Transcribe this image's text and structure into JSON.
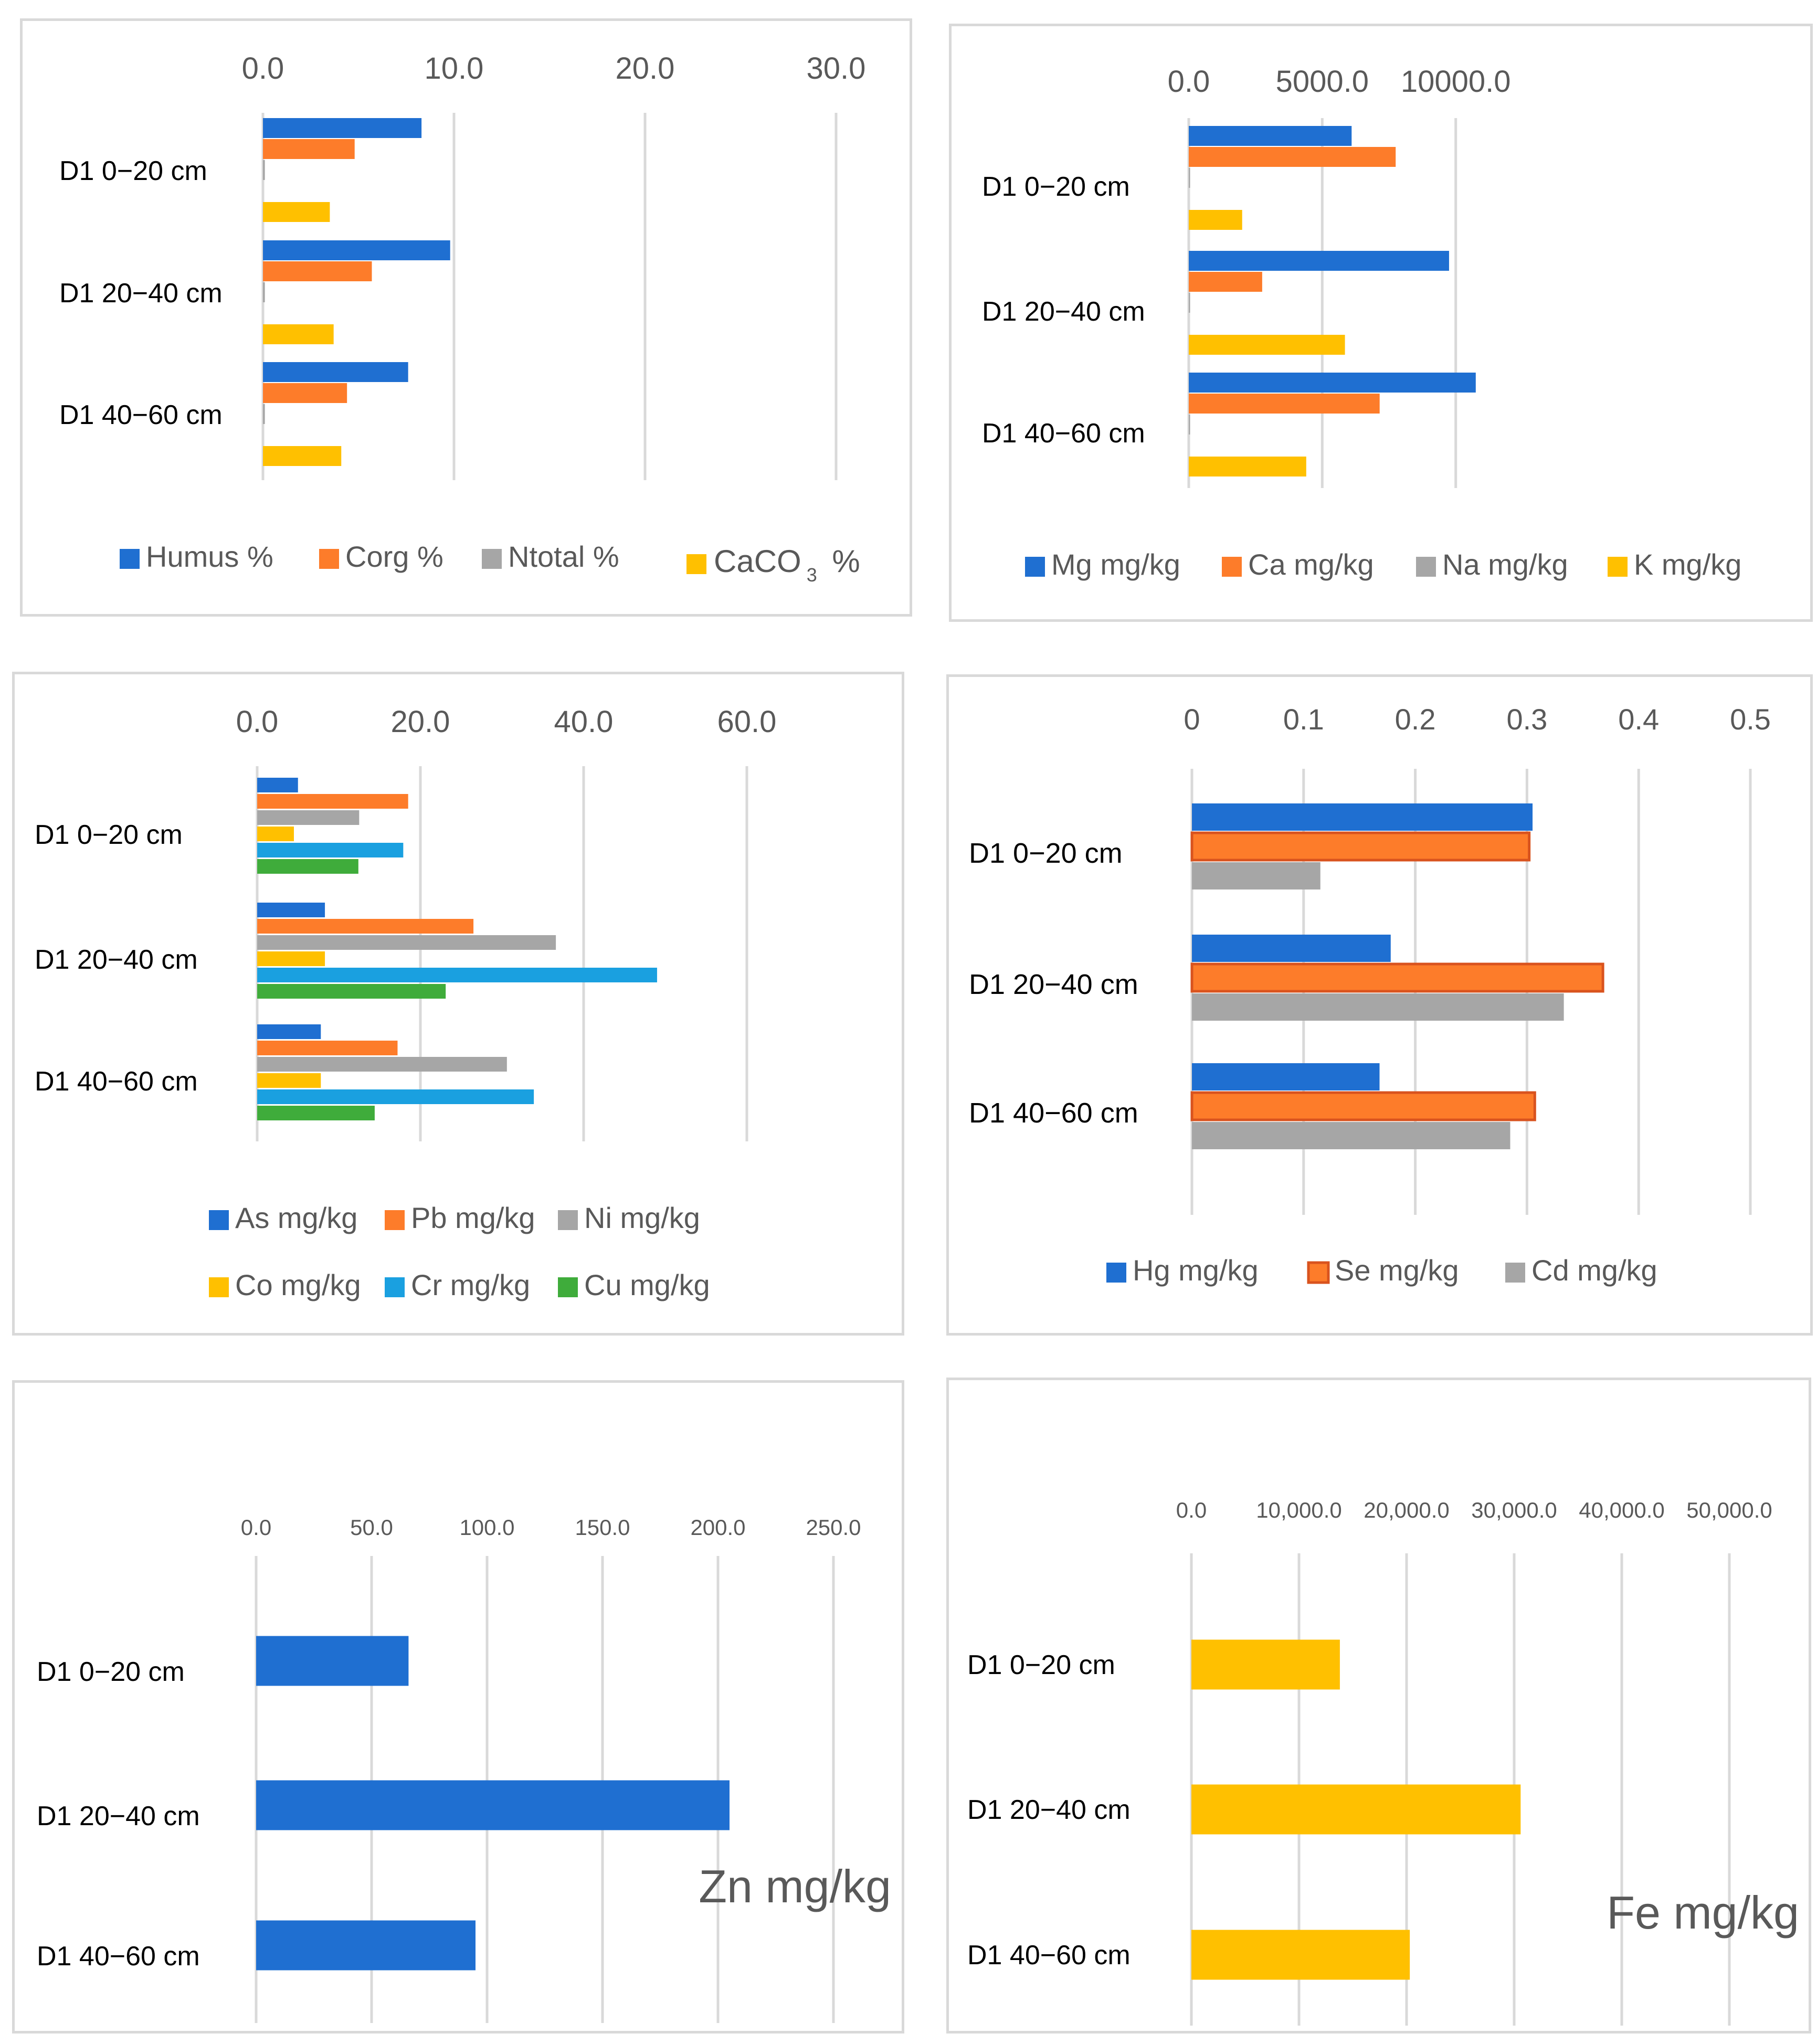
{
  "colors": {
    "blue": "#1f6fd1",
    "orange": "#fd7c2a",
    "gray": "#a6a6a6",
    "yellow": "#ffc000",
    "lightblue": "#1aa0e0",
    "green": "#3fac3b",
    "grid": "#d9d9d9",
    "se_border": "#d9531e"
  },
  "chart_data": [
    {
      "type": "bar",
      "orientation": "horizontal",
      "categories": [
        "D1 0−20 cm",
        "D1 20−40 cm",
        "D1 40−60 cm"
      ],
      "xlim": [
        0,
        30
      ],
      "ticks": [
        0,
        10,
        20,
        30
      ],
      "tick_labels": [
        "0.0",
        "10.0",
        "20.0",
        "30.0"
      ],
      "series": [
        {
          "name": "Humus %",
          "color": "blue",
          "values": [
            8.3,
            9.8,
            7.6
          ]
        },
        {
          "name": "Corg %",
          "color": "orange",
          "values": [
            4.8,
            5.7,
            4.4
          ]
        },
        {
          "name": "Ntotal %",
          "color": "gray",
          "values": [
            0.1,
            0.1,
            0.1
          ]
        },
        {
          "name": "CaCO₃ %",
          "color": "yellow",
          "values": [
            3.5,
            3.7,
            4.1
          ]
        }
      ],
      "legend": [
        "Humus %",
        "Corg %",
        "Ntotal %"
      ],
      "legend_caco3": {
        "main": "CaCO",
        "sub": "3",
        "suffix": " %"
      }
    },
    {
      "type": "bar",
      "orientation": "horizontal",
      "categories": [
        "D1 0−20 cm",
        "D1 20−40 cm",
        "D1 40−60 cm"
      ],
      "xlim": [
        0,
        15000
      ],
      "ticks": [
        0,
        5000,
        10000
      ],
      "tick_labels": [
        "0.0",
        "5000.0",
        "10000.0"
      ],
      "series": [
        {
          "name": "Mg mg/kg",
          "color": "blue",
          "values": [
            6100,
            9750,
            10750
          ]
        },
        {
          "name": "Ca mg/kg",
          "color": "orange",
          "values": [
            7750,
            2750,
            7150
          ]
        },
        {
          "name": "Na mg/kg",
          "color": "gray",
          "values": [
            50,
            50,
            50
          ]
        },
        {
          "name": "K mg/kg",
          "color": "yellow",
          "values": [
            2000,
            5850,
            4400
          ]
        }
      ]
    },
    {
      "type": "bar",
      "orientation": "horizontal",
      "categories": [
        "D1 0−20 cm",
        "D1 20−40 cm",
        "D1 40−60 cm"
      ],
      "xlim": [
        0,
        60
      ],
      "ticks": [
        0,
        20,
        40,
        60
      ],
      "tick_labels": [
        "0.0",
        "20.0",
        "40.0",
        "60.0"
      ],
      "series": [
        {
          "name": "As mg/kg",
          "color": "blue",
          "values": [
            5.0,
            8.3,
            7.8
          ]
        },
        {
          "name": "Pb mg/kg",
          "color": "orange",
          "values": [
            18.5,
            26.5,
            17.2
          ]
        },
        {
          "name": "Ni mg/kg",
          "color": "gray",
          "values": [
            12.5,
            36.6,
            30.6
          ]
        },
        {
          "name": "Co mg/kg",
          "color": "yellow",
          "values": [
            4.5,
            8.3,
            7.8
          ]
        },
        {
          "name": "Cr mg/kg",
          "color": "lightblue",
          "values": [
            17.9,
            49.0,
            33.9
          ]
        },
        {
          "name": "Cu mg/kg",
          "color": "green",
          "values": [
            12.4,
            23.1,
            14.4
          ]
        }
      ]
    },
    {
      "type": "bar",
      "orientation": "horizontal",
      "categories": [
        "D1 0−20 cm",
        "D1 20−40 cm",
        "D1 40−60 cm"
      ],
      "xlim": [
        0,
        0.5
      ],
      "ticks": [
        0,
        0.1,
        0.2,
        0.3,
        0.4,
        0.5
      ],
      "tick_labels": [
        "0",
        "0.1",
        "0.2",
        "0.3",
        "0.4",
        "0.5"
      ],
      "series": [
        {
          "name": "Hg mg/kg",
          "color": "blue",
          "values": [
            0.305,
            0.178,
            0.168
          ]
        },
        {
          "name": "Se mg/kg",
          "color": "orange",
          "values": [
            0.302,
            0.368,
            0.307
          ]
        },
        {
          "name": "Cd mg/kg",
          "color": "gray",
          "values": [
            0.115,
            0.333,
            0.285
          ]
        }
      ]
    },
    {
      "type": "bar",
      "orientation": "horizontal",
      "categories": [
        "D1 0−20 cm",
        "D1 20−40 cm",
        "D1 40−60 cm"
      ],
      "xlim": [
        0,
        250
      ],
      "ticks": [
        0,
        50,
        100,
        150,
        200,
        250
      ],
      "tick_labels": [
        "0.0",
        "50.0",
        "100.0",
        "150.0",
        "200.0",
        "250.0"
      ],
      "series": [
        {
          "name": "Zn mg/kg",
          "color": "blue",
          "values": [
            66,
            205,
            95
          ]
        }
      ],
      "title": "Zn mg/kg"
    },
    {
      "type": "bar",
      "orientation": "horizontal",
      "categories": [
        "D1 0−20 cm",
        "D1 20−40 cm",
        "D1 40−60 cm"
      ],
      "xlim": [
        0,
        50000
      ],
      "ticks": [
        0,
        10000,
        20000,
        30000,
        40000,
        50000
      ],
      "tick_labels": [
        "0.0",
        "10,000.0",
        "20,000.0",
        "30,000.0",
        "40,000.0",
        "50,000.0"
      ],
      "series": [
        {
          "name": "Fe mg/kg",
          "color": "yellow",
          "values": [
            13800,
            30600,
            20300
          ]
        }
      ],
      "title": "Fe mg/kg"
    }
  ]
}
